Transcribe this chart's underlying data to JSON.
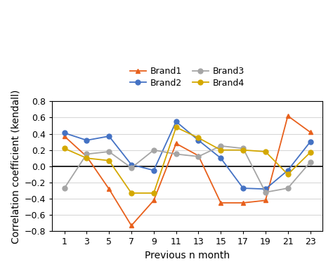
{
  "x": [
    1,
    3,
    5,
    7,
    9,
    11,
    13,
    15,
    17,
    19,
    21,
    23
  ],
  "brand1": [
    0.37,
    0.12,
    -0.28,
    -0.73,
    -0.42,
    0.28,
    0.13,
    -0.45,
    -0.45,
    -0.42,
    0.62,
    0.42
  ],
  "brand2": [
    0.41,
    0.32,
    0.37,
    0.02,
    -0.05,
    0.55,
    0.32,
    0.1,
    -0.27,
    -0.28,
    -0.05,
    0.3
  ],
  "brand3": [
    -0.27,
    0.15,
    0.18,
    -0.02,
    0.2,
    0.15,
    0.12,
    0.25,
    0.22,
    -0.32,
    -0.27,
    0.05
  ],
  "brand4": [
    0.22,
    0.1,
    0.07,
    -0.33,
    -0.33,
    0.48,
    0.35,
    0.2,
    0.2,
    0.18,
    -0.1,
    0.17
  ],
  "brand1_color": "#E8601C",
  "brand2_color": "#4472C4",
  "brand3_color": "#A5A5A5",
  "brand4_color": "#D4A800",
  "brand1_marker": "^",
  "brand2_marker": "o",
  "brand3_marker": "o",
  "brand4_marker": "o",
  "xlabel": "Previous n month",
  "ylabel": "Correlation coefficient (kendall)",
  "ylim": [
    -0.8,
    0.8
  ],
  "yticks": [
    -0.8,
    -0.6,
    -0.4,
    -0.2,
    0.0,
    0.2,
    0.4,
    0.6,
    0.8
  ],
  "xticks": [
    1,
    3,
    5,
    7,
    9,
    11,
    13,
    15,
    17,
    19,
    21,
    23
  ],
  "axis_fontsize": 10,
  "tick_fontsize": 9,
  "legend_fontsize": 9,
  "linewidth": 1.3,
  "markersize": 5
}
